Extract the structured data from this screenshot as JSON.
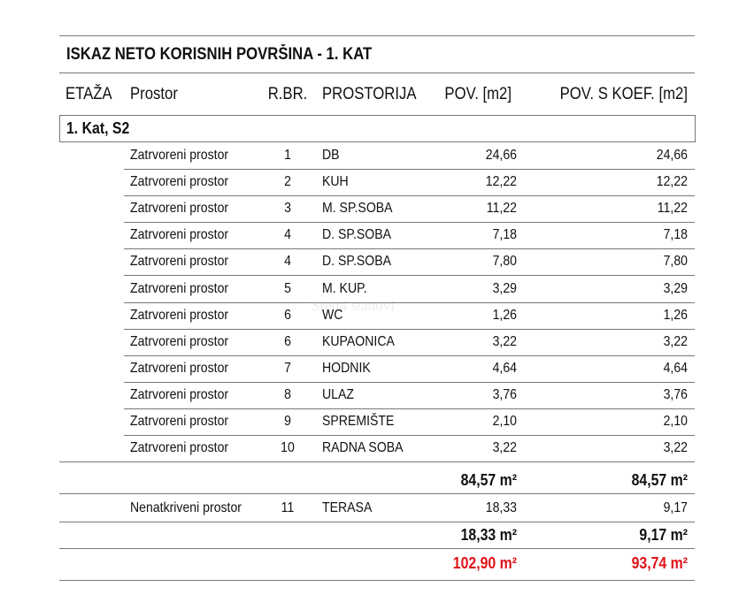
{
  "title": "ISKAZ NETO KORISNIH POVRŠINA - 1. KAT",
  "headers": {
    "etaza": "ETAŽA",
    "prostor": "Prostor",
    "rbr": "R.BR.",
    "prostorija": "PROSTORIJA",
    "pov": "POV. [m2]",
    "pov_koef": "POV. S KOEF. [m2]"
  },
  "section": "1. Kat, S2",
  "rows": [
    {
      "prostor": "Zatrvoreni prostor",
      "rbr": "1",
      "prostorija": "DB",
      "pov": "24,66",
      "pov_koef": "24,66"
    },
    {
      "prostor": "Zatrvoreni prostor",
      "rbr": "2",
      "prostorija": "KUH",
      "pov": "12,22",
      "pov_koef": "12,22"
    },
    {
      "prostor": "Zatrvoreni prostor",
      "rbr": "3",
      "prostorija": "M. SP.SOBA",
      "pov": "11,22",
      "pov_koef": "11,22"
    },
    {
      "prostor": "Zatrvoreni prostor",
      "rbr": "4",
      "prostorija": "D. SP.SOBA",
      "pov": "7,18",
      "pov_koef": "7,18"
    },
    {
      "prostor": "Zatrvoreni prostor",
      "rbr": "4",
      "prostorija": "D. SP.SOBA",
      "pov": "7,80",
      "pov_koef": "7,80"
    },
    {
      "prostor": "Zatrvoreni prostor",
      "rbr": "5",
      "prostorija": "M. KUP.",
      "pov": "3,29",
      "pov_koef": "3,29"
    },
    {
      "prostor": "Zatrvoreni prostor",
      "rbr": "6",
      "prostorija": "WC",
      "pov": "1,26",
      "pov_koef": "1,26"
    },
    {
      "prostor": "Zatrvoreni prostor",
      "rbr": "6",
      "prostorija": "KUPAONICA",
      "pov": "3,22",
      "pov_koef": "3,22"
    },
    {
      "prostor": "Zatrvoreni prostor",
      "rbr": "7",
      "prostorija": "HODNIK",
      "pov": "4,64",
      "pov_koef": "4,64"
    },
    {
      "prostor": "Zatrvoreni prostor",
      "rbr": "8",
      "prostorija": "ULAZ",
      "pov": "3,76",
      "pov_koef": "3,76"
    },
    {
      "prostor": "Zatrvoreni prostor",
      "rbr": "9",
      "prostorija": "SPREMIŠTE",
      "pov": "2,10",
      "pov_koef": "2,10"
    },
    {
      "prostor": "Zatrvoreni prostor",
      "rbr": "10",
      "prostorija": "RADNA SOBA",
      "pov": "3,22",
      "pov_koef": "3,22"
    }
  ],
  "subtotal_closed": {
    "pov": "84,57 m²",
    "pov_koef": "84,57 m²"
  },
  "open_row": {
    "prostor": "Nenatkriveni prostor",
    "rbr": "11",
    "prostorija": "TERASA",
    "pov": "18,33",
    "pov_koef": "9,17"
  },
  "subtotal_open": {
    "pov": "18,33 m²",
    "pov_koef": "9,17 m²"
  },
  "total": {
    "pov": "102,90 m²",
    "pov_koef": "93,74 m²",
    "color": "#e0141b"
  },
  "watermark": "Sretni stanovi"
}
